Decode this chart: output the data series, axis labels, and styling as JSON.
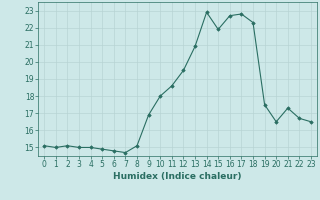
{
  "x": [
    0,
    1,
    2,
    3,
    4,
    5,
    6,
    7,
    8,
    9,
    10,
    11,
    12,
    13,
    14,
    15,
    16,
    17,
    18,
    19,
    20,
    21,
    22,
    23
  ],
  "y": [
    15.1,
    15.0,
    15.1,
    15.0,
    15.0,
    14.9,
    14.8,
    14.7,
    15.1,
    16.9,
    18.0,
    18.6,
    19.5,
    20.9,
    22.9,
    21.9,
    22.7,
    22.8,
    22.3,
    17.5,
    16.5,
    17.3,
    16.7,
    16.5
  ],
  "xlabel": "Humidex (Indice chaleur)",
  "ylabel": "",
  "xlim": [
    -0.5,
    23.5
  ],
  "ylim": [
    14.5,
    23.5
  ],
  "yticks": [
    15,
    16,
    17,
    18,
    19,
    20,
    21,
    22,
    23
  ],
  "xticks": [
    0,
    1,
    2,
    3,
    4,
    5,
    6,
    7,
    8,
    9,
    10,
    11,
    12,
    13,
    14,
    15,
    16,
    17,
    18,
    19,
    20,
    21,
    22,
    23
  ],
  "line_color": "#2a6e62",
  "marker": "D",
  "marker_size": 1.8,
  "bg_color": "#cde8e8",
  "grid_color": "#b8d4d4",
  "label_fontsize": 6.5,
  "tick_fontsize": 5.5
}
